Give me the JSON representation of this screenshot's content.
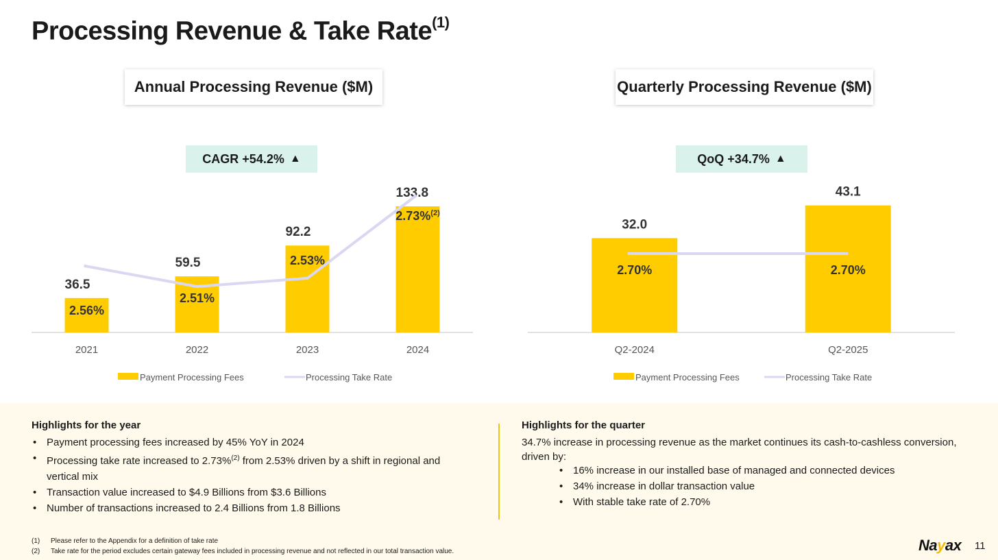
{
  "page": {
    "title": "Processing Revenue & Take Rate",
    "title_sup": "(1)",
    "page_number": "11",
    "logo_prefix": "Na",
    "logo_accent": "y",
    "logo_suffix": "ax"
  },
  "colors": {
    "bar": "#ffcc00",
    "line": "#dad7f2",
    "axis": "#d9d9d9",
    "badge_bg": "#d9f2ec"
  },
  "chart_data": [
    {
      "type": "bar",
      "title": "Annual Processing Revenue ($M)",
      "badge": "CAGR +54.2%",
      "categories": [
        "2021",
        "2022",
        "2023",
        "2024"
      ],
      "series": [
        {
          "name": "Payment Processing Fees",
          "type": "bar",
          "values": [
            36.5,
            59.5,
            92.2,
            133.8
          ]
        },
        {
          "name": "Processing Take Rate",
          "type": "line",
          "values": [
            2.56,
            2.51,
            2.53,
            2.73
          ]
        }
      ],
      "bar_labels": [
        "36.5",
        "59.5",
        "92.2",
        "133.8"
      ],
      "rate_labels": [
        "2.56%",
        "2.51%",
        "2.53%",
        "2.73%"
      ],
      "rate_label_sup": [
        "",
        "",
        "",
        "(2)"
      ],
      "legend": [
        "Payment Processing Fees",
        "Processing Take Rate"
      ],
      "ylim": [
        0,
        160
      ]
    },
    {
      "type": "bar",
      "title": "Quarterly Processing Revenue ($M)",
      "badge": "QoQ +34.7%",
      "categories": [
        "Q2-2024",
        "Q2-2025"
      ],
      "series": [
        {
          "name": "Payment Processing Fees",
          "type": "bar",
          "values": [
            32.0,
            43.1
          ]
        },
        {
          "name": "Processing Take Rate",
          "type": "line",
          "values": [
            2.7,
            2.7
          ]
        }
      ],
      "bar_labels": [
        "32.0",
        "43.1"
      ],
      "rate_labels": [
        "2.70%",
        "2.70%"
      ],
      "rate_label_sup": [
        "",
        ""
      ],
      "legend": [
        "Payment Processing Fees",
        "Processing Take Rate"
      ],
      "ylim": [
        0,
        50
      ]
    }
  ],
  "highlights": {
    "year_title": "Highlights for the year",
    "year_items": {
      "item1": "Payment processing fees increased by 45% YoY in 2024",
      "item2_pre": "Processing take rate increased to 2.73%",
      "item2_sup": "(2)",
      "item2_post": " from 2.53% driven by a shift in regional and vertical mix",
      "item3": "Transaction value increased to $4.9 Billions from $3.6 Billions",
      "item4": "Number of transactions increased to 2.4 Billions from 1.8 Billions"
    },
    "quarter_title": "Highlights for the quarter",
    "quarter_intro": "34.7% increase in processing revenue as the market continues its cash-to-cashless conversion, driven by:",
    "quarter_items": [
      "16% increase in our installed base of managed and connected devices",
      "34% increase in dollar transaction value",
      "With stable take rate of 2.70%"
    ]
  },
  "footnotes": [
    {
      "num": "(1)",
      "text": "Please refer to the Appendix for a definition of take rate"
    },
    {
      "num": "(2)",
      "text": "Take rate for the period excludes certain gateway fees included in processing revenue and not reflected in our total transaction value."
    }
  ]
}
